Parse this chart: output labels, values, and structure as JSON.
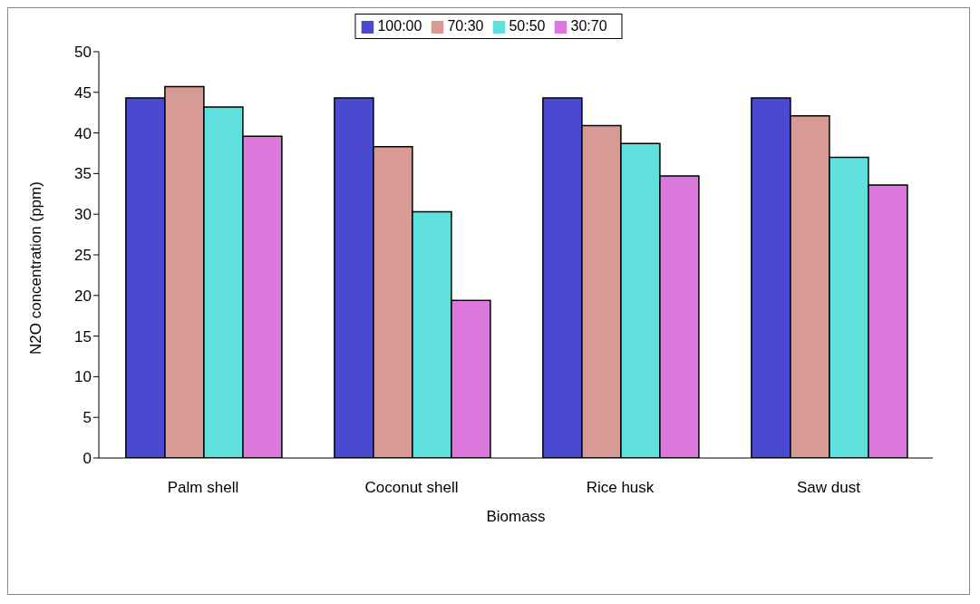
{
  "chart_data": {
    "type": "bar",
    "xlabel": "Biomass",
    "ylabel": "N2O concentration (ppm)",
    "categories": [
      "Palm shell",
      "Coconut shell",
      "Rice husk",
      "Saw dust"
    ],
    "series": [
      {
        "name": "100:00",
        "color": "#4a4ad0",
        "values": [
          44.3,
          44.3,
          44.3,
          44.3
        ]
      },
      {
        "name": "70:30",
        "color": "#d89a94",
        "values": [
          45.7,
          38.3,
          40.9,
          42.1
        ]
      },
      {
        "name": "50:50",
        "color": "#5fe0dc",
        "values": [
          43.2,
          30.3,
          38.7,
          37.0
        ]
      },
      {
        "name": "30:70",
        "color": "#dc78dc",
        "values": [
          39.6,
          19.4,
          34.7,
          33.6
        ]
      }
    ],
    "ylim": [
      0,
      50
    ],
    "yticks": [
      0,
      5,
      10,
      15,
      20,
      25,
      30,
      35,
      40,
      45,
      50
    ],
    "grid": false,
    "legend": "top"
  }
}
